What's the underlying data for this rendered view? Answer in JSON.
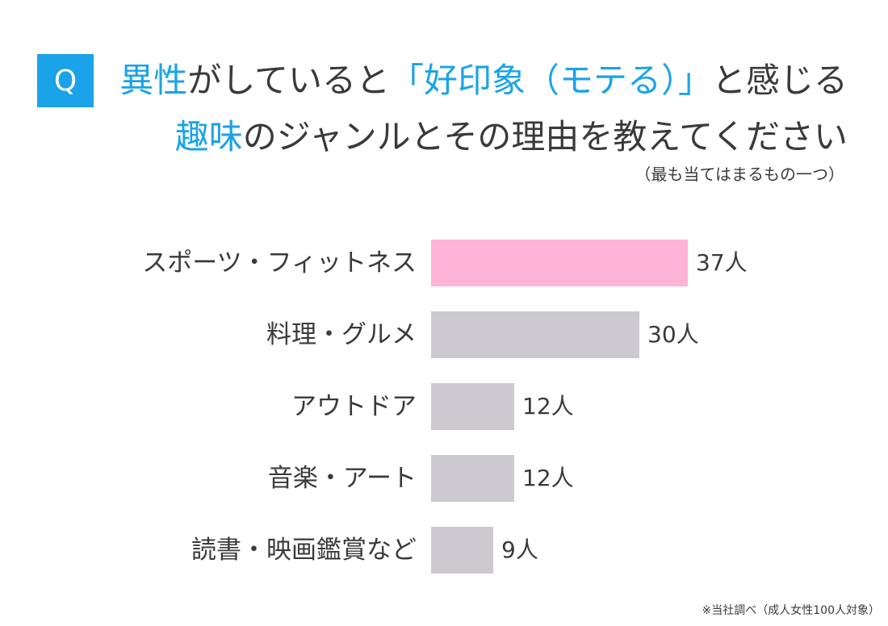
{
  "question": {
    "badge": "Q",
    "line1_hl": "異性",
    "line1_a": "がしていると",
    "line1_quote": "「好印象（モテる）」",
    "line1_b": "と感じる",
    "line2_hl": "趣味",
    "line2_a": "のジャンルとその理由を教えてください",
    "note": "（最も当てはまるもの一つ）"
  },
  "colors": {
    "accent": "#1aa3e8",
    "highlight_bar": "#ffb3d9",
    "default_bar": "#ccc9cf"
  },
  "chart_data": {
    "type": "bar",
    "orientation": "horizontal",
    "categories": [
      "スポーツ・フィットネス",
      "料理・グルメ",
      "アウトドア",
      "音楽・アート",
      "読書・映画鑑賞など"
    ],
    "values": [
      37,
      30,
      12,
      12,
      9
    ],
    "value_labels": [
      "37人",
      "30人",
      "12人",
      "12人",
      "9人"
    ],
    "highlight_index": 0,
    "xlim": [
      0,
      37
    ],
    "grid": false
  },
  "footnote": "※当社調べ（成人女性100人対象）"
}
